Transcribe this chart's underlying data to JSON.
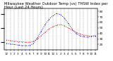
{
  "title": "Milwaukee Weather Outdoor Temp (vs) THSW Index per Hour (Last 24 Hours)",
  "hours": [
    0,
    1,
    2,
    3,
    4,
    5,
    6,
    7,
    8,
    9,
    10,
    11,
    12,
    13,
    14,
    15,
    16,
    17,
    18,
    19,
    20,
    21,
    22,
    23
  ],
  "hour_labels": [
    "12",
    "1",
    "2",
    "3",
    "4",
    "5",
    "6",
    "7",
    "8",
    "9",
    "10",
    "11",
    "12",
    "1",
    "2",
    "3",
    "4",
    "5",
    "6",
    "7",
    "8",
    "9",
    "10",
    "11"
  ],
  "outdoor_temp": [
    28,
    27,
    26,
    25,
    25,
    24,
    24,
    26,
    30,
    36,
    42,
    48,
    52,
    55,
    56,
    54,
    50,
    46,
    42,
    39,
    37,
    36,
    35,
    35
  ],
  "thsw_index": [
    22,
    21,
    20,
    19,
    18,
    18,
    18,
    22,
    32,
    44,
    56,
    65,
    72,
    76,
    74,
    68,
    58,
    48,
    40,
    36,
    34,
    33,
    35,
    36
  ],
  "temp_color": "#cc0000",
  "thsw_color": "#0000cc",
  "background_color": "#ffffff",
  "grid_color": "#888888",
  "ylim": [
    10,
    85
  ],
  "yticks_right": [
    20,
    30,
    40,
    50,
    60,
    70,
    80
  ],
  "title_fontsize": 3.8,
  "tick_fontsize": 3.0,
  "line_width": 0.7,
  "marker_size": 1.0
}
